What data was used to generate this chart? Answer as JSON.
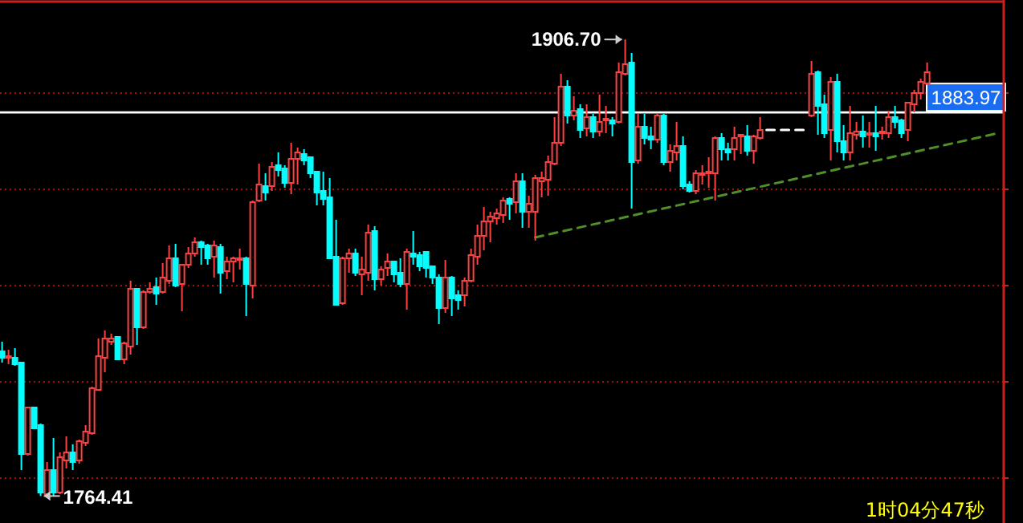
{
  "chart_data": {
    "type": "candlestick",
    "categories": [
      null,
      null,
      null,
      null,
      null,
      null,
      null,
      null,
      null,
      null,
      null,
      null,
      null,
      null,
      null,
      null,
      null,
      null,
      null,
      null,
      null,
      null,
      null,
      null,
      null,
      null,
      null,
      null,
      null,
      null,
      null,
      null,
      null,
      null,
      null,
      null,
      null,
      null,
      null,
      null,
      null,
      null,
      null,
      null,
      null,
      null,
      null,
      null,
      null,
      null,
      null,
      null,
      null,
      null,
      null,
      null,
      null,
      null,
      null,
      null,
      null,
      null,
      null,
      null,
      null,
      null,
      null,
      null,
      null,
      null,
      null,
      null,
      null,
      null,
      null,
      null,
      null,
      null,
      null,
      null,
      null,
      null,
      null,
      null,
      null,
      null,
      null,
      null,
      null,
      null,
      null,
      null,
      null,
      null,
      null,
      null,
      null,
      null,
      null,
      null,
      null,
      null,
      null,
      null,
      null,
      null,
      null,
      null,
      null,
      null,
      null,
      null,
      null,
      null,
      null,
      null,
      null,
      null,
      null,
      null,
      null,
      null,
      null,
      null,
      null,
      null,
      null,
      null,
      null,
      null,
      null,
      null,
      null,
      null,
      null,
      null,
      null,
      null,
      null,
      null,
      null,
      null,
      null,
      null,
      null,
      null,
      null,
      null,
      null,
      null,
      null,
      null,
      null,
      null,
      null,
      null
    ],
    "ohlc": [
      [
        1809.5,
        1812.5,
        1806,
        1807.5
      ],
      [
        1807.5,
        1810,
        1805.5,
        1808
      ],
      [
        1807.5,
        1810.5,
        1805,
        1805.5
      ],
      [
        1806,
        1806,
        1772.5,
        1777.5
      ],
      [
        1777.5,
        1792,
        1777,
        1792
      ],
      [
        1792,
        1792,
        1785.5,
        1785.5
      ],
      [
        1786.5,
        1787,
        1764.41,
        1765.5
      ],
      [
        1765,
        1775,
        1764.5,
        1772.5
      ],
      [
        1772.5,
        1782.5,
        1764.5,
        1765.5
      ],
      [
        1765.5,
        1778,
        1765,
        1776.5
      ],
      [
        1775.5,
        1783,
        1773,
        1778
      ],
      [
        1778,
        1780.5,
        1772.5,
        1775
      ],
      [
        1775.5,
        1782,
        1774.5,
        1781.5
      ],
      [
        1781,
        1786.5,
        1780,
        1784.5
      ],
      [
        1784,
        1798.5,
        1783.5,
        1798
      ],
      [
        1797.5,
        1813.5,
        1797.5,
        1808
      ],
      [
        1807.5,
        1816,
        1803,
        1813.5
      ],
      [
        1812.5,
        1815,
        1811.5,
        1813.5
      ],
      [
        1814,
        1814,
        1807,
        1807
      ],
      [
        1807,
        1812.5,
        1805.5,
        1812
      ],
      [
        1811,
        1831.5,
        1808.5,
        1829
      ],
      [
        1829,
        1829,
        1811.5,
        1817
      ],
      [
        1817,
        1828.5,
        1816.5,
        1828
      ],
      [
        1828,
        1831,
        1827.5,
        1829
      ],
      [
        1829.5,
        1832.5,
        1824,
        1827.5
      ],
      [
        1828,
        1837,
        1827.5,
        1832.5
      ],
      [
        1831.5,
        1842.5,
        1830.5,
        1838.5
      ],
      [
        1838.5,
        1843,
        1829.5,
        1830
      ],
      [
        1830.5,
        1836.5,
        1822,
        1836.5
      ],
      [
        1836.5,
        1842,
        1835.5,
        1840
      ],
      [
        1840,
        1845,
        1839,
        1843.5
      ],
      [
        1843.5,
        1844,
        1836.5,
        1842
      ],
      [
        1842.5,
        1843,
        1836.5,
        1838.5
      ],
      [
        1839,
        1844,
        1832.5,
        1842.5
      ],
      [
        1842,
        1843,
        1827.5,
        1834
      ],
      [
        1834.5,
        1839,
        1832,
        1837.5
      ],
      [
        1837.5,
        1839,
        1831,
        1838.5
      ],
      [
        1838,
        1841.5,
        1835,
        1838.5
      ],
      [
        1838.5,
        1839,
        1820.5,
        1830.5
      ],
      [
        1830,
        1856.5,
        1826,
        1856
      ],
      [
        1856.5,
        1868,
        1856,
        1861.5
      ],
      [
        1861,
        1865,
        1856.5,
        1859
      ],
      [
        1861,
        1868.5,
        1859.5,
        1867
      ],
      [
        1867.5,
        1871.5,
        1864,
        1866
      ],
      [
        1866.5,
        1867.5,
        1860.5,
        1862
      ],
      [
        1862,
        1874.5,
        1858.5,
        1869.5
      ],
      [
        1869.5,
        1873,
        1861.5,
        1871.5
      ],
      [
        1871,
        1872.5,
        1867.5,
        1869
      ],
      [
        1870,
        1870,
        1863.5,
        1865
      ],
      [
        1865.5,
        1865.5,
        1855,
        1859
      ],
      [
        1859.5,
        1865.5,
        1855,
        1857
      ],
      [
        1857.5,
        1863.5,
        1838.5,
        1838.5
      ],
      [
        1839,
        1850.5,
        1824,
        1824
      ],
      [
        1824.5,
        1839,
        1824,
        1838.5
      ],
      [
        1838.5,
        1841.5,
        1834,
        1840
      ],
      [
        1840,
        1841.5,
        1833,
        1834
      ],
      [
        1833.5,
        1839,
        1827,
        1835
      ],
      [
        1834,
        1849,
        1831.5,
        1846.5
      ],
      [
        1847,
        1848.5,
        1828.5,
        1832
      ],
      [
        1832,
        1836,
        1830,
        1835
      ],
      [
        1835.5,
        1840,
        1833,
        1837.5
      ],
      [
        1837.5,
        1837.5,
        1831,
        1833.5
      ],
      [
        1834,
        1838.5,
        1829.5,
        1830.5
      ],
      [
        1830.5,
        1841.5,
        1822.5,
        1840.5
      ],
      [
        1840,
        1847,
        1836.5,
        1839
      ],
      [
        1839.5,
        1840.5,
        1834.5,
        1836
      ],
      [
        1840.5,
        1840.5,
        1832.5,
        1835.5
      ],
      [
        1836,
        1836,
        1830.5,
        1832.5
      ],
      [
        1832.5,
        1833.5,
        1818,
        1823
      ],
      [
        1823,
        1838,
        1821.5,
        1832.5
      ],
      [
        1832.5,
        1833,
        1820.5,
        1826
      ],
      [
        1827,
        1828.5,
        1822.5,
        1825.5
      ],
      [
        1827,
        1832.5,
        1823.5,
        1831.5
      ],
      [
        1831.5,
        1841.5,
        1831,
        1839.5
      ],
      [
        1839,
        1849,
        1836.5,
        1845.5
      ],
      [
        1845.5,
        1854.5,
        1841,
        1850
      ],
      [
        1850,
        1853,
        1843.5,
        1851.5
      ],
      [
        1851,
        1854,
        1849,
        1852.5
      ],
      [
        1852,
        1857.5,
        1849.5,
        1856.5
      ],
      [
        1857,
        1857.5,
        1850.5,
        1855.5
      ],
      [
        1856,
        1865,
        1852.5,
        1862.5
      ],
      [
        1862.5,
        1865,
        1848,
        1853
      ],
      [
        1853,
        1858,
        1848,
        1855.5
      ],
      [
        1853,
        1864.5,
        1844,
        1863.5
      ],
      [
        1862.5,
        1865.5,
        1857.5,
        1863.5
      ],
      [
        1863,
        1870.5,
        1858,
        1868.5
      ],
      [
        1868,
        1882.5,
        1867.5,
        1874.5
      ],
      [
        1874.5,
        1896,
        1873.5,
        1892
      ],
      [
        1892,
        1894,
        1880.5,
        1883
      ],
      [
        1883,
        1889,
        1881.5,
        1884.5
      ],
      [
        1885,
        1886.5,
        1876,
        1878.5
      ],
      [
        1879,
        1886.5,
        1876.5,
        1882.5
      ],
      [
        1882.5,
        1883.5,
        1876,
        1878
      ],
      [
        1878,
        1889.5,
        1876.5,
        1881
      ],
      [
        1881.5,
        1886,
        1877.5,
        1882
      ],
      [
        1881.5,
        1882.5,
        1876.5,
        1880.5
      ],
      [
        1881,
        1899.5,
        1880.5,
        1896.5
      ],
      [
        1896,
        1906.7,
        1895.5,
        1899
      ],
      [
        1899.5,
        1902.5,
        1854,
        1868.5
      ],
      [
        1869,
        1883.5,
        1868,
        1879.5
      ],
      [
        1879.5,
        1883.5,
        1874,
        1876
      ],
      [
        1876.5,
        1879.5,
        1872.5,
        1875.5
      ],
      [
        1875.5,
        1883.5,
        1874.5,
        1883
      ],
      [
        1883,
        1883.5,
        1867.5,
        1868.5
      ],
      [
        1868.5,
        1874,
        1865.5,
        1872
      ],
      [
        1871.5,
        1881,
        1869,
        1873.5
      ],
      [
        1873.5,
        1876.5,
        1860,
        1861
      ],
      [
        1861.5,
        1862.5,
        1859,
        1859.5
      ],
      [
        1859.5,
        1866,
        1858.5,
        1865
      ],
      [
        1864.5,
        1867.5,
        1861.5,
        1865
      ],
      [
        1865,
        1870,
        1860.5,
        1865.5
      ],
      [
        1865,
        1876.5,
        1856.5,
        1876
      ],
      [
        1876,
        1877.5,
        1869,
        1872.5
      ],
      [
        1872.5,
        1874.5,
        1869,
        1871.5
      ],
      [
        1872.5,
        1879.5,
        1869,
        1876
      ],
      [
        1876.5,
        1877,
        1871,
        1877
      ],
      [
        1876.5,
        1880,
        1870.5,
        1872
      ],
      [
        1872,
        1877,
        1868,
        1876.5
      ],
      [
        1876,
        1882.5,
        1875.5,
        1878.5
      ],
      null,
      null,
      null,
      null,
      null,
      null,
      null,
      [
        1883,
        1900,
        1882.5,
        1896
      ],
      [
        1896.5,
        1897,
        1877,
        1886
      ],
      [
        1886.5,
        1889.5,
        1876,
        1877.5
      ],
      [
        1878.5,
        1895,
        1869,
        1893.5
      ],
      [
        1893.5,
        1896,
        1871.5,
        1875
      ],
      [
        1875,
        1880,
        1869,
        1871.5
      ],
      [
        1871.5,
        1886,
        1869,
        1877.5
      ],
      [
        1877,
        1881,
        1875.5,
        1878
      ],
      [
        1878,
        1883,
        1873,
        1876.5
      ],
      [
        1877,
        1881,
        1873,
        1877.5
      ],
      [
        1877.5,
        1886,
        1872,
        1876.5
      ],
      [
        1877.5,
        1879.5,
        1875.5,
        1878
      ],
      [
        1877.5,
        1884.5,
        1876,
        1882.5
      ],
      [
        1882.5,
        1886,
        1879,
        1881
      ],
      [
        1881.5,
        1882,
        1876,
        1877.5
      ],
      [
        1878.5,
        1887,
        1875,
        1887
      ],
      [
        1886.5,
        1891,
        1884,
        1890
      ],
      [
        1890,
        1894.5,
        1888,
        1893.5
      ],
      [
        1893,
        1899.5,
        1892.5,
        1896.5
      ],
      null,
      null,
      null,
      null,
      null,
      null,
      null,
      null,
      null,
      null,
      null
    ],
    "series": [
      {
        "type": "line",
        "values": [
          null,
          null,
          null,
          null,
          null,
          null,
          null,
          null,
          null,
          null,
          null,
          null,
          null,
          null,
          null,
          null,
          null,
          null,
          null,
          null,
          null,
          null,
          null,
          null,
          null,
          null,
          null,
          null,
          null,
          null,
          null,
          null,
          null,
          null,
          null,
          null,
          null,
          null,
          null,
          null,
          null,
          null,
          null,
          null,
          null,
          null,
          null,
          null,
          null,
          null,
          null,
          null,
          null,
          null,
          null,
          null,
          null,
          null,
          null,
          null,
          null,
          null,
          null,
          null,
          null,
          null,
          null,
          null,
          null,
          null,
          null,
          null,
          null,
          null,
          null,
          null,
          null,
          null,
          null,
          null,
          null,
          null,
          null,
          1845,
          null,
          null,
          null,
          null,
          null,
          null,
          null,
          null,
          null,
          null,
          null,
          null,
          null,
          null,
          null,
          null,
          null,
          null,
          null,
          null,
          null,
          null,
          null,
          null,
          null,
          null,
          null,
          null,
          null,
          null,
          null,
          null,
          null,
          null,
          null,
          null,
          null,
          null,
          null,
          null,
          null,
          null,
          null,
          null,
          null,
          null,
          null,
          null,
          null,
          null,
          null,
          null,
          null,
          null,
          null,
          null,
          null,
          null,
          null,
          null,
          null,
          null,
          null,
          null,
          null,
          null,
          null,
          null,
          null,
          null,
          null,
          1877.5
        ],
        "color": "#4f8f2a",
        "line_style": "dashed"
      },
      {
        "type": "line",
        "values": [
          null,
          null,
          null,
          null,
          null,
          null,
          null,
          null,
          null,
          null,
          null,
          null,
          null,
          null,
          null,
          null,
          null,
          null,
          null,
          null,
          null,
          null,
          null,
          null,
          null,
          null,
          null,
          null,
          null,
          null,
          null,
          null,
          null,
          null,
          null,
          null,
          null,
          null,
          null,
          null,
          null,
          null,
          null,
          null,
          null,
          null,
          null,
          null,
          null,
          null,
          null,
          null,
          null,
          null,
          null,
          null,
          null,
          null,
          null,
          null,
          null,
          null,
          null,
          null,
          null,
          null,
          null,
          null,
          null,
          null,
          null,
          null,
          null,
          null,
          null,
          null,
          null,
          null,
          null,
          null,
          null,
          null,
          null,
          null,
          null,
          null,
          null,
          null,
          null,
          null,
          null,
          null,
          null,
          null,
          null,
          null,
          null,
          null,
          null,
          null,
          null,
          null,
          null,
          null,
          null,
          null,
          null,
          null,
          null,
          null,
          null,
          null,
          null,
          null,
          null,
          null,
          null,
          null,
          null,
          1878.5,
          1878.5,
          1878.5,
          1878.5,
          1878.5,
          1878.5,
          1878.5,
          null,
          null,
          null,
          null,
          null,
          null,
          null,
          null,
          null,
          null,
          null,
          null,
          null,
          null,
          null,
          null,
          null,
          null,
          null,
          null,
          null,
          null,
          null,
          null,
          null,
          null,
          null,
          null,
          null,
          null
        ],
        "color": "#ffffff",
        "line_style": "dashed"
      }
    ],
    "ylim": [
      1756,
      1919
    ],
    "yticks": [
      {
        "value": 1770,
        "label": null
      },
      {
        "value": 1800,
        "label": null
      },
      {
        "value": 1830,
        "label": null
      },
      {
        "value": 1860,
        "label": null
      },
      {
        "value": 1890,
        "label": null
      }
    ],
    "grid": "y",
    "ref_lines": [
      {
        "axis": "y",
        "value": 1883.97,
        "label": "1883.97",
        "color": "#ffffff"
      }
    ],
    "annotations": [
      "1906.70",
      "1764.41",
      "1时04分47秒"
    ]
  }
}
